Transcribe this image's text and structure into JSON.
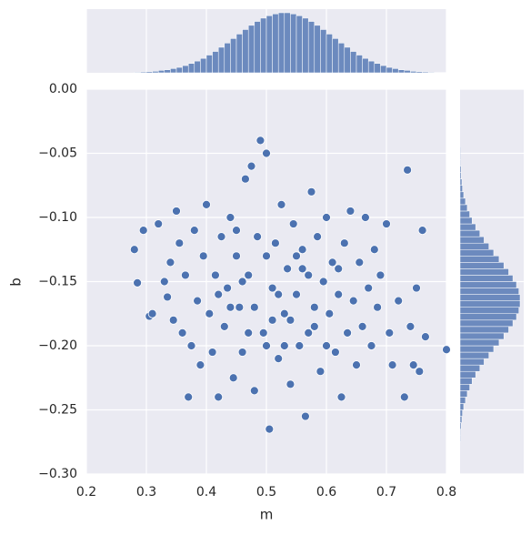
{
  "chart_data": {
    "type": "scatter",
    "x_label": "m",
    "y_label": "b",
    "color": "#4c72b0",
    "grid": true,
    "x": [
      0.28,
      0.285,
      0.295,
      0.305,
      0.31,
      0.32,
      0.33,
      0.335,
      0.34,
      0.345,
      0.35,
      0.355,
      0.36,
      0.365,
      0.37,
      0.375,
      0.38,
      0.385,
      0.39,
      0.395,
      0.4,
      0.405,
      0.41,
      0.415,
      0.42,
      0.425,
      0.43,
      0.435,
      0.44,
      0.445,
      0.45,
      0.455,
      0.46,
      0.465,
      0.47,
      0.475,
      0.48,
      0.485,
      0.49,
      0.495,
      0.5,
      0.505,
      0.51,
      0.515,
      0.52,
      0.525,
      0.53,
      0.535,
      0.54,
      0.545,
      0.55,
      0.555,
      0.56,
      0.565,
      0.57,
      0.575,
      0.58,
      0.585,
      0.59,
      0.595,
      0.6,
      0.605,
      0.61,
      0.615,
      0.62,
      0.625,
      0.63,
      0.635,
      0.64,
      0.645,
      0.65,
      0.655,
      0.66,
      0.665,
      0.67,
      0.675,
      0.68,
      0.685,
      0.69,
      0.7,
      0.705,
      0.71,
      0.72,
      0.73,
      0.735,
      0.74,
      0.745,
      0.75,
      0.755,
      0.76,
      0.765,
      0.8,
      0.5,
      0.52,
      0.54,
      0.48,
      0.46,
      0.56,
      0.58,
      0.5,
      0.44,
      0.62,
      0.47,
      0.53,
      0.57,
      0.45,
      0.6,
      0.42,
      0.51,
      0.55
    ],
    "y": [
      -0.125,
      -0.151,
      -0.11,
      -0.177,
      -0.175,
      -0.105,
      -0.15,
      -0.162,
      -0.135,
      -0.18,
      -0.095,
      -0.12,
      -0.19,
      -0.145,
      -0.24,
      -0.2,
      -0.11,
      -0.165,
      -0.215,
      -0.13,
      -0.09,
      -0.175,
      -0.205,
      -0.145,
      -0.24,
      -0.115,
      -0.185,
      -0.155,
      -0.1,
      -0.225,
      -0.13,
      -0.17,
      -0.205,
      -0.07,
      -0.145,
      -0.06,
      -0.235,
      -0.115,
      -0.04,
      -0.19,
      -0.05,
      -0.265,
      -0.155,
      -0.12,
      -0.21,
      -0.09,
      -0.175,
      -0.14,
      -0.23,
      -0.105,
      -0.16,
      -0.2,
      -0.125,
      -0.255,
      -0.145,
      -0.08,
      -0.185,
      -0.115,
      -0.22,
      -0.15,
      -0.1,
      -0.175,
      -0.135,
      -0.205,
      -0.16,
      -0.24,
      -0.12,
      -0.19,
      -0.095,
      -0.165,
      -0.215,
      -0.135,
      -0.185,
      -0.1,
      -0.155,
      -0.2,
      -0.125,
      -0.17,
      -0.145,
      -0.105,
      -0.19,
      -0.215,
      -0.165,
      -0.24,
      -0.063,
      -0.185,
      -0.215,
      -0.155,
      -0.22,
      -0.11,
      -0.193,
      -0.203,
      -0.13,
      -0.16,
      -0.18,
      -0.17,
      -0.15,
      -0.14,
      -0.17,
      -0.2,
      -0.17,
      -0.14,
      -0.19,
      -0.2,
      -0.19,
      -0.11,
      -0.2,
      -0.16,
      -0.18,
      -0.13
    ],
    "xlim": [
      0.2,
      0.8
    ],
    "xticks": [
      0.2,
      0.3,
      0.4,
      0.5,
      0.6,
      0.7,
      0.8
    ],
    "ylim": [
      -0.3,
      0.0
    ],
    "yticks": [
      {
        "value": -0.3,
        "label": "−0.30"
      },
      {
        "value": -0.25,
        "label": "−0.25"
      },
      {
        "value": -0.2,
        "label": "−0.20"
      },
      {
        "value": -0.15,
        "label": "−0.15"
      },
      {
        "value": -0.1,
        "label": "−0.10"
      },
      {
        "value": -0.05,
        "label": "−0.05"
      },
      {
        "value": 0.0,
        "label": "0.00"
      }
    ],
    "marginal_x": {
      "bins": [
        0.28,
        0.29,
        0.3,
        0.31,
        0.32,
        0.33,
        0.34,
        0.35,
        0.36,
        0.37,
        0.38,
        0.39,
        0.4,
        0.41,
        0.42,
        0.43,
        0.44,
        0.45,
        0.46,
        0.47,
        0.48,
        0.49,
        0.5,
        0.51,
        0.52,
        0.53,
        0.54,
        0.55,
        0.56,
        0.57,
        0.58,
        0.59,
        0.6,
        0.61,
        0.62,
        0.63,
        0.64,
        0.65,
        0.66,
        0.67,
        0.68,
        0.69,
        0.7,
        0.71,
        0.72,
        0.73,
        0.74,
        0.75,
        0.76,
        0.77,
        0.78,
        0.79,
        0.8
      ],
      "counts": [
        2,
        3,
        4,
        5,
        8,
        10,
        14,
        18,
        24,
        31,
        39,
        48,
        59,
        71,
        85,
        99,
        114,
        129,
        144,
        158,
        171,
        182,
        190,
        196,
        200,
        200,
        196,
        190,
        182,
        171,
        158,
        144,
        129,
        114,
        99,
        85,
        71,
        59,
        48,
        39,
        31,
        24,
        18,
        14,
        10,
        8,
        5,
        4,
        3,
        2,
        1,
        1
      ]
    },
    "marginal_y": {
      "bins": [
        -0.275,
        -0.27,
        -0.265,
        -0.26,
        -0.255,
        -0.25,
        -0.245,
        -0.24,
        -0.235,
        -0.23,
        -0.225,
        -0.22,
        -0.215,
        -0.21,
        -0.205,
        -0.2,
        -0.195,
        -0.19,
        -0.185,
        -0.18,
        -0.175,
        -0.17,
        -0.165,
        -0.16,
        -0.155,
        -0.15,
        -0.145,
        -0.14,
        -0.135,
        -0.13,
        -0.125,
        -0.12,
        -0.115,
        -0.11,
        -0.105,
        -0.1,
        -0.095,
        -0.09,
        -0.085,
        -0.08,
        -0.075,
        -0.07,
        -0.065,
        -0.06,
        -0.055,
        -0.05,
        -0.045
      ],
      "counts": [
        1,
        1,
        2,
        3,
        4,
        6,
        9,
        12,
        16,
        20,
        26,
        33,
        40,
        48,
        56,
        65,
        73,
        81,
        88,
        94,
        98,
        100,
        100,
        98,
        94,
        88,
        81,
        73,
        65,
        56,
        48,
        40,
        33,
        26,
        20,
        16,
        12,
        9,
        6,
        4,
        3,
        2,
        2,
        1,
        1,
        1
      ]
    }
  }
}
